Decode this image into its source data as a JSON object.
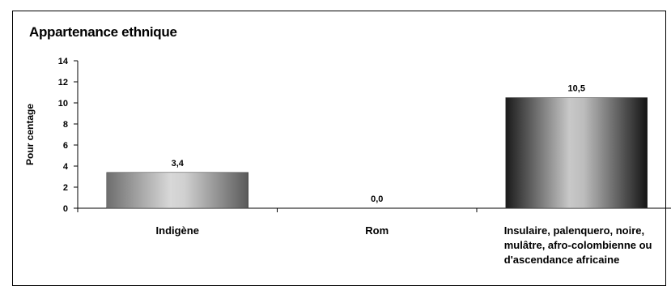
{
  "chart_data": {
    "type": "bar",
    "title": "Appartenance ethnique",
    "ylabel": "Pour centage",
    "xlabel": "",
    "ylim": [
      0,
      14
    ],
    "yticks": [
      0,
      2,
      4,
      6,
      8,
      10,
      12,
      14
    ],
    "grid": false,
    "legend": "none",
    "categories": [
      [
        "Indigène"
      ],
      [
        "Rom"
      ],
      [
        "Insulaire, palenquero, noire,",
        "mulâtre, afro-colombienne ou",
        "d'ascendance africaine"
      ]
    ],
    "values": [
      3.4,
      0.0,
      10.5
    ],
    "value_labels": [
      "3,4",
      "0,0",
      "10,5"
    ],
    "bar_styles": [
      "light-gradient",
      "light-gradient",
      "dark-gradient"
    ]
  }
}
